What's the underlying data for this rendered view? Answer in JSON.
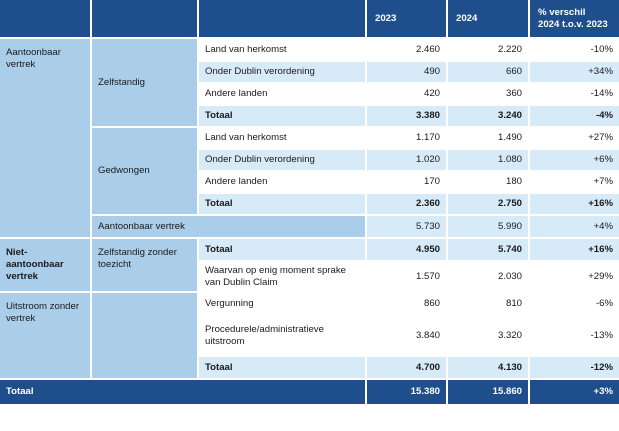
{
  "header": {
    "col_2023": "2023",
    "col_2024": "2024",
    "col_diff_line1": "% verschil",
    "col_diff_line2": "2024 t.o.v. 2023"
  },
  "groups": {
    "aantoonbaar": "Aantoonbaar vertrek",
    "zelfstandig": "Zelfstandig",
    "gedwongen": "Gedwongen",
    "niet_aantoonbaar": "Niet-aantoonbaar vertrek",
    "zonder_toezicht": "Zelfstandig zonder toezicht",
    "uitstroom": "Uitstroom zonder vertrek"
  },
  "rows": {
    "zelf_herkomst": {
      "label": "Land van herkomst",
      "v2023": "2.460",
      "v2024": "2.220",
      "diff": "-10%"
    },
    "zelf_dublin": {
      "label": "Onder Dublin verordening",
      "v2023": "490",
      "v2024": "660",
      "diff": "+34%"
    },
    "zelf_andere": {
      "label": "Andere landen",
      "v2023": "420",
      "v2024": "360",
      "diff": "-14%"
    },
    "zelf_totaal": {
      "label": "Totaal",
      "v2023": "3.380",
      "v2024": "3.240",
      "diff": "-4%"
    },
    "gedw_herkomst": {
      "label": "Land van herkomst",
      "v2023": "1.170",
      "v2024": "1.490",
      "diff": "+27%"
    },
    "gedw_dublin": {
      "label": "Onder Dublin verordening",
      "v2023": "1.020",
      "v2024": "1.080",
      "diff": "+6%"
    },
    "gedw_andere": {
      "label": "Andere landen",
      "v2023": "170",
      "v2024": "180",
      "diff": "+7%"
    },
    "gedw_totaal": {
      "label": "Totaal",
      "v2023": "2.360",
      "v2024": "2.750",
      "diff": "+16%"
    },
    "aantoonbaar_sum": {
      "label": "Aantoonbaar vertrek",
      "v2023": "5.730",
      "v2024": "5.990",
      "diff": "+4%"
    },
    "niet_totaal": {
      "label": "Totaal",
      "v2023": "4.950",
      "v2024": "5.740",
      "diff": "+16%"
    },
    "niet_dublin_claim": {
      "label": "Waarvan op enig moment sprake van Dublin Claim",
      "v2023": "1.570",
      "v2024": "2.030",
      "diff": "+29%"
    },
    "uit_vergunning": {
      "label": "Vergunning",
      "v2023": "860",
      "v2024": "810",
      "diff": "-6%"
    },
    "uit_procedurele": {
      "label": "Procedurele/administratieve uitstroom",
      "v2023": "3.840",
      "v2024": "3.320",
      "diff": "-13%"
    },
    "uit_totaal": {
      "label": "Totaal",
      "v2023": "4.700",
      "v2024": "4.130",
      "diff": "-12%"
    },
    "grand_totaal": {
      "label": "Totaal",
      "v2023": "15.380",
      "v2024": "15.860",
      "diff": "+3%"
    }
  },
  "colors": {
    "header_blue": "#1e4e8c",
    "group_blue": "#aacdea",
    "row_tint": "#d6eaf8",
    "row_light": "#ffffff"
  }
}
